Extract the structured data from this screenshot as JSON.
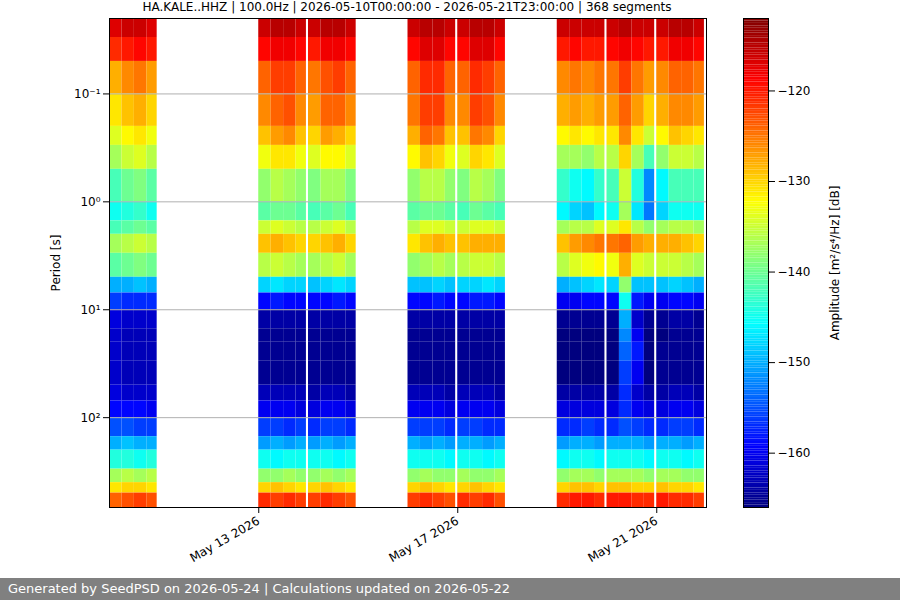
{
  "chart_data": {
    "type": "heatmap",
    "title": "HA.KALE..HHZ | 100.0Hz | 2026-05-10T00:00:00 - 2026-05-21T23:00:00 | 368 segments",
    "caption": "Generated by SeedPSD on 2026-05-24 | Calculations updated on 2026-05-22",
    "ylabel": "Period [s]",
    "xlim": [
      "2026-05-10T00:00:00",
      "2026-05-22T00:00:00"
    ],
    "xticks": [
      {
        "value": "2026-05-13T00:00:00",
        "label": "May 13 2026"
      },
      {
        "value": "2026-05-17T00:00:00",
        "label": "May 17 2026"
      },
      {
        "value": "2026-05-21T00:00:00",
        "label": "May 21 2026"
      }
    ],
    "ylim": [
      0.02,
      680
    ],
    "yticks": [
      {
        "value": 0.1,
        "label": "10⁻¹"
      },
      {
        "value": 1,
        "label": "10⁰"
      },
      {
        "value": 10,
        "label": "10¹"
      },
      {
        "value": 100,
        "label": "10²"
      }
    ],
    "log": "y",
    "grid": "y",
    "period_edges": [
      0.02,
      0.03,
      0.05,
      0.1,
      0.2,
      0.3,
      0.5,
      1,
      1.5,
      2,
      3,
      5,
      7,
      10,
      15,
      20,
      30,
      50,
      70,
      100,
      150,
      200,
      300,
      400,
      500,
      680
    ],
    "cells": [
      {
        "start": "2026-05-10T00:00:00",
        "end": "2026-05-10T06:00:00",
        "values": [
          -117,
          -121,
          -128,
          -131,
          -134,
          -137,
          -142,
          -145,
          -142,
          -137,
          -141,
          -150,
          -156,
          -161,
          -162,
          -162,
          -162,
          -161,
          -159,
          -155,
          -150,
          -144,
          -137,
          -131,
          -124
        ]
      },
      {
        "start": "2026-05-10T06:00:00",
        "end": "2026-05-10T12:00:00",
        "values": [
          -116,
          -120,
          -126,
          -129,
          -132,
          -135,
          -140,
          -144,
          -141,
          -136,
          -140,
          -150,
          -157,
          -162,
          -163,
          -163,
          -163,
          -162,
          -159,
          -155,
          -149,
          -144,
          -136,
          -130,
          -123
        ]
      },
      {
        "start": "2026-05-10T12:00:00",
        "end": "2026-05-10T18:00:00",
        "values": [
          -116,
          -119,
          -125,
          -128,
          -131,
          -134,
          -139,
          -143,
          -140,
          -135,
          -139,
          -149,
          -157,
          -162,
          -163,
          -163,
          -163,
          -162,
          -159,
          -156,
          -150,
          -145,
          -137,
          -130,
          -122
        ]
      },
      {
        "start": "2026-05-10T18:00:00",
        "end": "2026-05-10T23:00:00",
        "values": [
          -117,
          -120,
          -127,
          -130,
          -133,
          -136,
          -141,
          -145,
          -141,
          -136,
          -140,
          -150,
          -157,
          -162,
          -163,
          -163,
          -163,
          -162,
          -160,
          -156,
          -150,
          -144,
          -136,
          -131,
          -123
        ]
      },
      {
        "start": "2026-05-13T00:00:00",
        "end": "2026-05-13T06:00:00",
        "values": [
          -116,
          -119,
          -124,
          -126,
          -129,
          -133,
          -138,
          -141,
          -135,
          -129,
          -136,
          -148,
          -159,
          -164,
          -165,
          -165,
          -165,
          -163,
          -160,
          -156,
          -151,
          -145,
          -138,
          -130,
          -121
        ]
      },
      {
        "start": "2026-05-13T06:00:00",
        "end": "2026-05-13T12:00:00",
        "values": [
          -115,
          -118,
          -122,
          -124,
          -127,
          -131,
          -136,
          -140,
          -134,
          -128,
          -135,
          -147,
          -158,
          -164,
          -165,
          -165,
          -165,
          -163,
          -160,
          -156,
          -150,
          -146,
          -138,
          -129,
          -122
        ]
      },
      {
        "start": "2026-05-13T12:00:00",
        "end": "2026-05-13T18:00:00",
        "values": [
          -115,
          -118,
          -122,
          -123,
          -126,
          -131,
          -137,
          -140,
          -135,
          -129,
          -136,
          -148,
          -159,
          -164,
          -165,
          -165,
          -165,
          -163,
          -160,
          -157,
          -151,
          -145,
          -137,
          -130,
          -121
        ]
      },
      {
        "start": "2026-05-13T18:00:00",
        "end": "2026-05-13T23:00:00",
        "values": [
          -116,
          -119,
          -124,
          -126,
          -129,
          -133,
          -138,
          -141,
          -136,
          -130,
          -137,
          -148,
          -159,
          -164,
          -165,
          -165,
          -165,
          -163,
          -161,
          -156,
          -150,
          -145,
          -138,
          -131,
          -122
        ]
      },
      {
        "start": "2026-05-14T00:00:00",
        "end": "2026-05-14T06:00:00",
        "values": [
          -116,
          -120,
          -125,
          -127,
          -130,
          -134,
          -139,
          -142,
          -136,
          -130,
          -137,
          -149,
          -159,
          -164,
          -165,
          -165,
          -165,
          -164,
          -161,
          -157,
          -151,
          -145,
          -138,
          -130,
          -122
        ]
      },
      {
        "start": "2026-05-14T06:00:00",
        "end": "2026-05-14T12:00:00",
        "values": [
          -115,
          -118,
          -123,
          -124,
          -127,
          -132,
          -137,
          -141,
          -135,
          -129,
          -136,
          -148,
          -159,
          -164,
          -165,
          -165,
          -165,
          -163,
          -160,
          -156,
          -150,
          -145,
          -137,
          -129,
          -121
        ]
      },
      {
        "start": "2026-05-14T12:00:00",
        "end": "2026-05-14T18:00:00",
        "values": [
          -115,
          -118,
          -122,
          -124,
          -128,
          -132,
          -137,
          -140,
          -134,
          -128,
          -135,
          -147,
          -158,
          -164,
          -165,
          -165,
          -165,
          -163,
          -160,
          -156,
          -151,
          -146,
          -138,
          -130,
          -122
        ]
      },
      {
        "start": "2026-05-14T18:00:00",
        "end": "2026-05-14T23:00:00",
        "values": [
          -116,
          -119,
          -124,
          -126,
          -130,
          -134,
          -139,
          -142,
          -136,
          -130,
          -137,
          -148,
          -159,
          -164,
          -165,
          -165,
          -165,
          -164,
          -161,
          -157,
          -150,
          -145,
          -137,
          -131,
          -123
        ]
      },
      {
        "start": "2026-05-16T00:00:00",
        "end": "2026-05-16T06:00:00",
        "values": [
          -116,
          -119,
          -124,
          -125,
          -128,
          -132,
          -138,
          -141,
          -136,
          -131,
          -138,
          -149,
          -159,
          -164,
          -165,
          -165,
          -165,
          -163,
          -160,
          -156,
          -150,
          -145,
          -138,
          -130,
          -122
        ]
      },
      {
        "start": "2026-05-16T06:00:00",
        "end": "2026-05-16T12:00:00",
        "values": [
          -115,
          -117,
          -121,
          -122,
          -124,
          -129,
          -136,
          -140,
          -134,
          -129,
          -137,
          -149,
          -159,
          -164,
          -165,
          -165,
          -165,
          -163,
          -160,
          -156,
          -151,
          -145,
          -137,
          -129,
          -121
        ]
      },
      {
        "start": "2026-05-16T12:00:00",
        "end": "2026-05-16T18:00:00",
        "values": [
          -115,
          -117,
          -121,
          -122,
          -125,
          -130,
          -136,
          -140,
          -134,
          -128,
          -136,
          -148,
          -158,
          -164,
          -165,
          -165,
          -165,
          -163,
          -160,
          -156,
          -150,
          -145,
          -138,
          -130,
          -122
        ]
      },
      {
        "start": "2026-05-16T18:00:00",
        "end": "2026-05-16T23:00:00",
        "values": [
          -116,
          -119,
          -124,
          -126,
          -129,
          -133,
          -138,
          -141,
          -135,
          -129,
          -137,
          -149,
          -159,
          -164,
          -165,
          -165,
          -165,
          -164,
          -161,
          -157,
          -151,
          -146,
          -138,
          -131,
          -123
        ]
      },
      {
        "start": "2026-05-17T00:00:00",
        "end": "2026-05-17T06:00:00",
        "values": [
          -116,
          -119,
          -124,
          -126,
          -129,
          -134,
          -139,
          -142,
          -135,
          -129,
          -136,
          -148,
          -159,
          -164,
          -165,
          -165,
          -165,
          -163,
          -160,
          -156,
          -150,
          -145,
          -137,
          -130,
          -121
        ]
      },
      {
        "start": "2026-05-17T06:00:00",
        "end": "2026-05-17T12:00:00",
        "values": [
          -115,
          -117,
          -121,
          -122,
          -125,
          -130,
          -136,
          -140,
          -134,
          -128,
          -135,
          -148,
          -158,
          -164,
          -165,
          -165,
          -165,
          -163,
          -160,
          -156,
          -150,
          -145,
          -138,
          -129,
          -122
        ]
      },
      {
        "start": "2026-05-17T12:00:00",
        "end": "2026-05-17T18:00:00",
        "values": [
          -115,
          -117,
          -122,
          -123,
          -126,
          -131,
          -137,
          -141,
          -134,
          -128,
          -135,
          -147,
          -158,
          -164,
          -165,
          -165,
          -165,
          -163,
          -160,
          -157,
          -151,
          -146,
          -138,
          -130,
          -121
        ]
      },
      {
        "start": "2026-05-17T18:00:00",
        "end": "2026-05-17T23:00:00",
        "values": [
          -116,
          -119,
          -124,
          -126,
          -130,
          -134,
          -139,
          -142,
          -135,
          -128,
          -136,
          -148,
          -159,
          -164,
          -165,
          -165,
          -165,
          -164,
          -161,
          -157,
          -150,
          -145,
          -137,
          -131,
          -123
        ]
      },
      {
        "start": "2026-05-19T00:00:00",
        "end": "2026-05-19T06:00:00",
        "values": [
          -116,
          -120,
          -126,
          -128,
          -132,
          -137,
          -143,
          -146,
          -137,
          -129,
          -136,
          -150,
          -160,
          -165,
          -166,
          -166,
          -166,
          -164,
          -161,
          -157,
          -151,
          -146,
          -138,
          -130,
          -121
        ]
      },
      {
        "start": "2026-05-19T06:00:00",
        "end": "2026-05-19T12:00:00",
        "values": [
          -116,
          -119,
          -125,
          -127,
          -131,
          -137,
          -145,
          -148,
          -136,
          -127,
          -134,
          -149,
          -160,
          -165,
          -166,
          -166,
          -166,
          -164,
          -161,
          -157,
          -150,
          -145,
          -137,
          -129,
          -120
        ]
      },
      {
        "start": "2026-05-19T12:00:00",
        "end": "2026-05-19T18:00:00",
        "values": [
          -116,
          -120,
          -126,
          -128,
          -132,
          -138,
          -146,
          -149,
          -136,
          -126,
          -133,
          -148,
          -159,
          -165,
          -166,
          -166,
          -166,
          -164,
          -161,
          -156,
          -150,
          -145,
          -137,
          -129,
          -120
        ]
      },
      {
        "start": "2026-05-19T18:00:00",
        "end": "2026-05-19T23:00:00",
        "values": [
          -116,
          -120,
          -125,
          -127,
          -131,
          -136,
          -143,
          -146,
          -134,
          -125,
          -132,
          -147,
          -159,
          -165,
          -166,
          -166,
          -166,
          -164,
          -161,
          -157,
          -151,
          -146,
          -138,
          -130,
          -121
        ]
      },
      {
        "start": "2026-05-20T00:00:00",
        "end": "2026-05-20T06:00:00",
        "values": [
          -116,
          -119,
          -125,
          -127,
          -131,
          -136,
          -142,
          -145,
          -134,
          -125,
          -133,
          -148,
          -159,
          -165,
          -166,
          -166,
          -166,
          -164,
          -161,
          -157,
          -150,
          -145,
          -137,
          -129,
          -120
        ]
      },
      {
        "start": "2026-05-20T06:00:00",
        "end": "2026-05-20T12:00:00",
        "values": [
          -115,
          -118,
          -122,
          -124,
          -126,
          -130,
          -135,
          -137,
          -131,
          -124,
          -128,
          -138,
          -145,
          -150,
          -152,
          -154,
          -156,
          -157,
          -157,
          -155,
          -150,
          -145,
          -137,
          -129,
          -120
        ]
      },
      {
        "start": "2026-05-20T12:00:00",
        "end": "2026-05-20T18:00:00",
        "values": [
          -116,
          -119,
          -125,
          -127,
          -131,
          -137,
          -144,
          -147,
          -136,
          -127,
          -134,
          -149,
          -158,
          -162,
          -160,
          -158,
          -160,
          -162,
          -160,
          -156,
          -150,
          -145,
          -137,
          -130,
          -121
        ]
      },
      {
        "start": "2026-05-20T18:00:00",
        "end": "2026-05-20T23:00:00",
        "values": [
          -116,
          -120,
          -127,
          -130,
          -135,
          -142,
          -152,
          -153,
          -138,
          -128,
          -135,
          -149,
          -160,
          -165,
          -166,
          -166,
          -166,
          -164,
          -161,
          -157,
          -151,
          -146,
          -138,
          -130,
          -121
        ]
      },
      {
        "start": "2026-05-21T00:00:00",
        "end": "2026-05-21T06:00:00",
        "values": [
          -116,
          -120,
          -126,
          -128,
          -132,
          -138,
          -146,
          -148,
          -137,
          -128,
          -135,
          -149,
          -160,
          -165,
          -166,
          -165,
          -165,
          -164,
          -161,
          -157,
          -150,
          -145,
          -137,
          -129,
          -120
        ]
      },
      {
        "start": "2026-05-21T06:00:00",
        "end": "2026-05-21T12:00:00",
        "values": [
          -115,
          -118,
          -124,
          -126,
          -129,
          -135,
          -142,
          -145,
          -136,
          -128,
          -135,
          -148,
          -159,
          -164,
          -165,
          -165,
          -165,
          -163,
          -160,
          -156,
          -150,
          -145,
          -137,
          -130,
          -121
        ]
      },
      {
        "start": "2026-05-21T12:00:00",
        "end": "2026-05-21T18:00:00",
        "values": [
          -115,
          -118,
          -124,
          -126,
          -130,
          -135,
          -142,
          -145,
          -136,
          -129,
          -136,
          -149,
          -159,
          -164,
          -165,
          -165,
          -165,
          -163,
          -160,
          -156,
          -151,
          -146,
          -138,
          -130,
          -121
        ]
      },
      {
        "start": "2026-05-21T18:00:00",
        "end": "2026-05-21T23:00:00",
        "values": [
          -116,
          -119,
          -125,
          -127,
          -131,
          -136,
          -142,
          -145,
          -137,
          -130,
          -137,
          -150,
          -160,
          -165,
          -165,
          -165,
          -165,
          -164,
          -161,
          -157,
          -150,
          -145,
          -138,
          -131,
          -122
        ]
      }
    ],
    "colorbar": {
      "label": "Amplitude [m²/s⁴/Hz] [dB]",
      "lim": [
        -166,
        -112
      ],
      "ticks": [
        -160,
        -150,
        -140,
        -130,
        -120
      ]
    }
  }
}
